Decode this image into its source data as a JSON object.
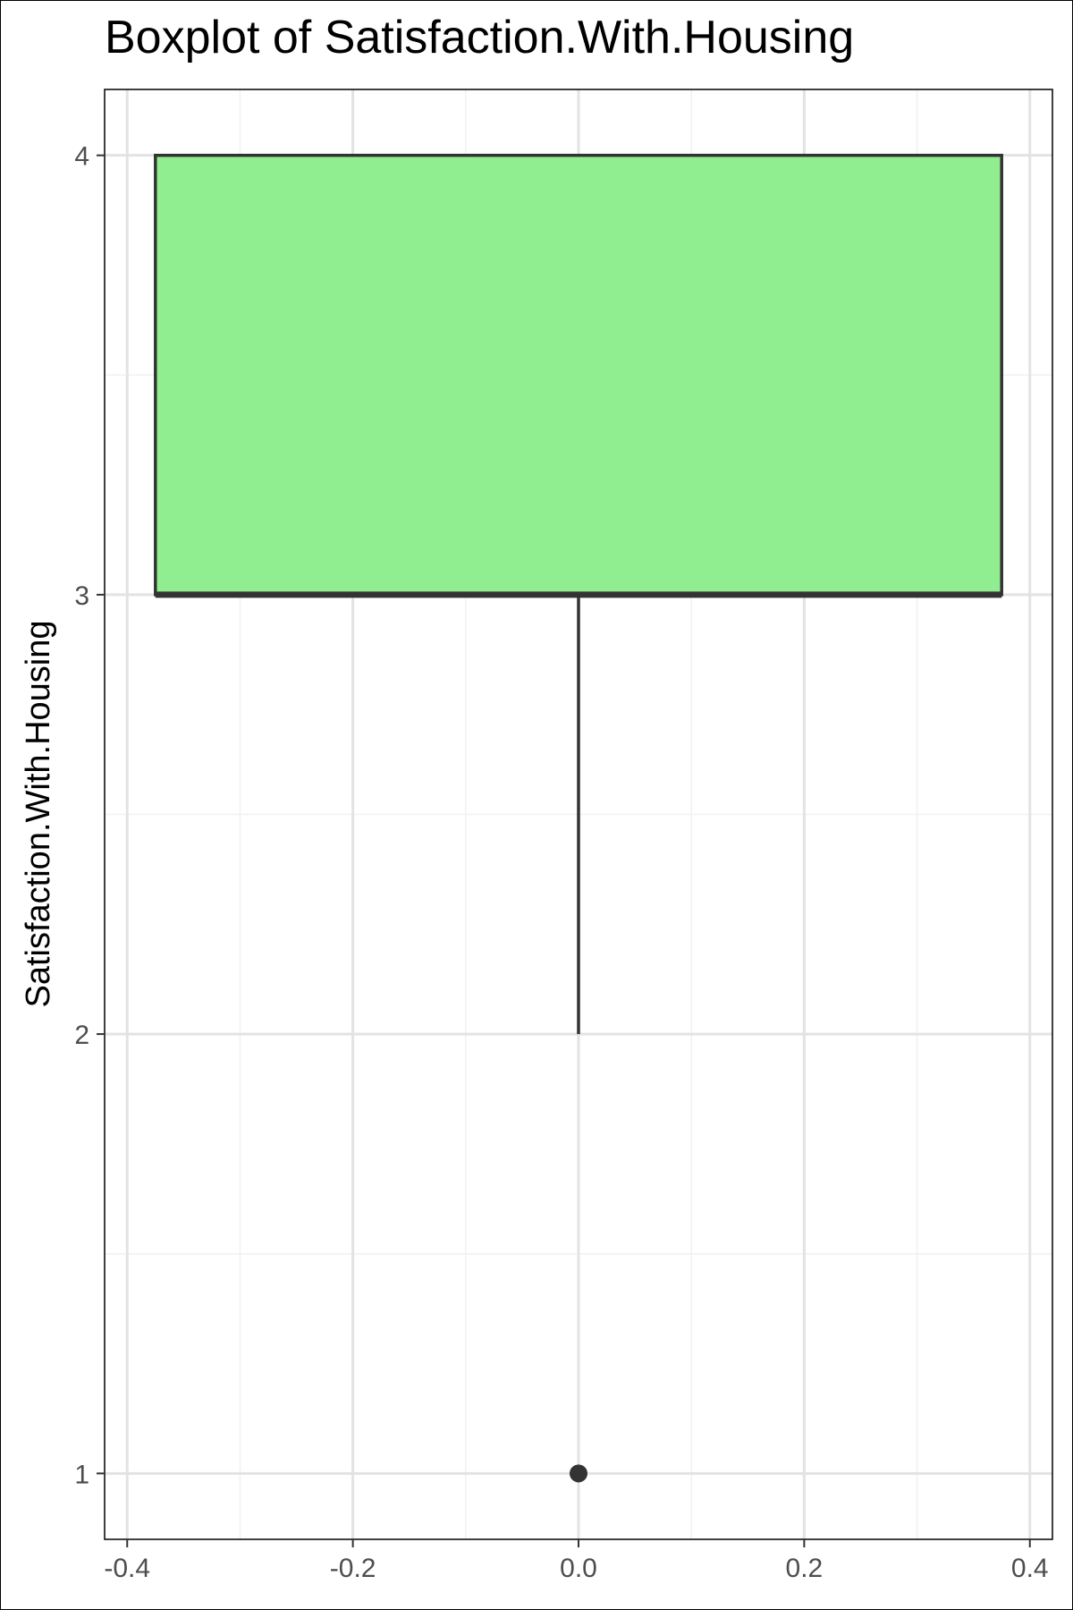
{
  "chart_data": {
    "type": "boxplot",
    "title": "Boxplot of Satisfaction.With.Housing",
    "xlabel": "",
    "ylabel": "Satisfaction.With.Housing",
    "xlim": [
      -0.42,
      0.42
    ],
    "ylim": [
      0.85,
      4.15
    ],
    "x_ticks": [
      -0.4,
      -0.2,
      0.0,
      0.2,
      0.4
    ],
    "x_tick_labels": [
      "-0.4",
      "-0.2",
      "0.0",
      "0.2",
      "0.4"
    ],
    "y_ticks": [
      1,
      2,
      3,
      4
    ],
    "y_tick_labels": [
      "1",
      "2",
      "3",
      "4"
    ],
    "grid": true,
    "box": {
      "x_center": 0.0,
      "x_left": -0.375,
      "x_right": 0.375,
      "q1": 3,
      "median": 3,
      "q3": 4,
      "whisker_low": 2,
      "whisker_high": 4,
      "outliers": [
        1
      ]
    },
    "colors": {
      "box_fill": "#90ee90",
      "box_stroke": "#333333",
      "grid_major": "#e3e3e3",
      "grid_minor": "#f1f1f1",
      "panel_border": "#000000",
      "tick_text": "#4d4d4d"
    }
  }
}
